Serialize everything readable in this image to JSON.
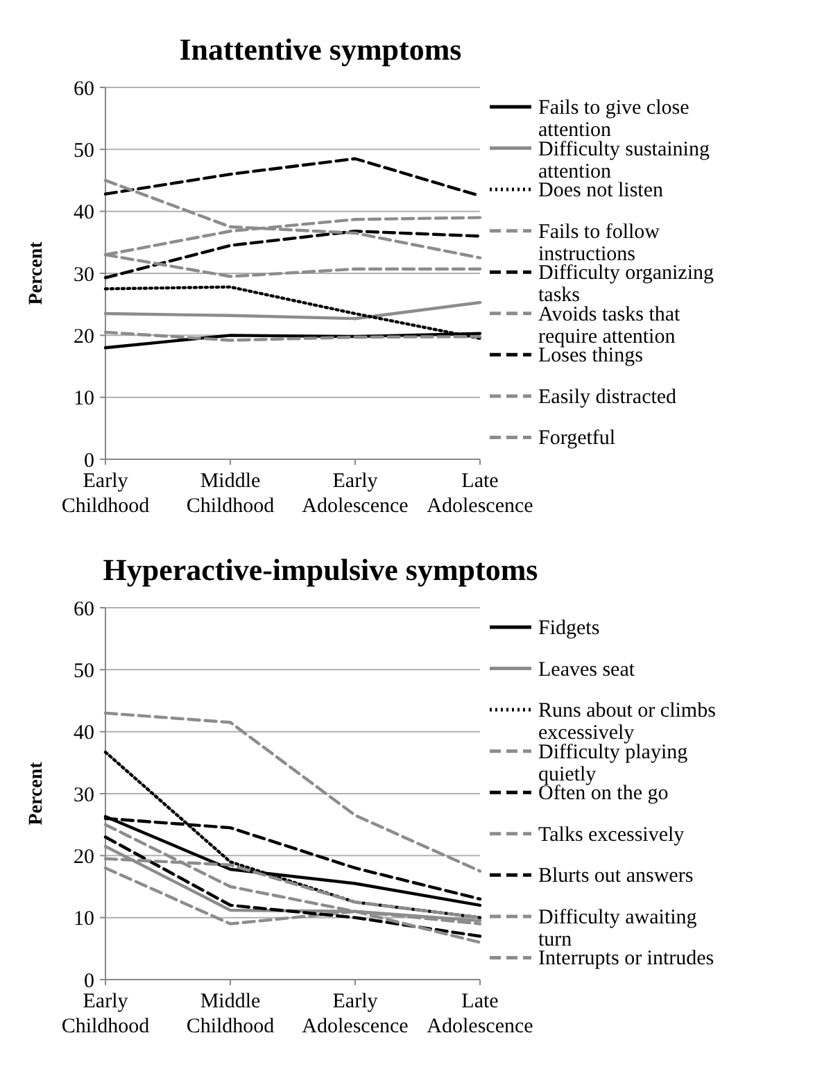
{
  "chart_data": [
    {
      "type": "line",
      "title": "Inattentive symptoms",
      "ylabel": "Percent",
      "categories": [
        "Early Childhood",
        "Middle Childhood",
        "Early Adolescence",
        "Late Adolescence"
      ],
      "ylim": [
        0,
        60
      ],
      "yticks": [
        0,
        10,
        20,
        30,
        40,
        50,
        60
      ],
      "grid": "y",
      "legend": "right",
      "marker": "none",
      "series": [
        {
          "name": "Fails to give close attention",
          "color": "#000000",
          "line_style": "solid",
          "values": [
            18,
            20,
            19.8,
            20.3
          ]
        },
        {
          "name": "Difficulty sustaining attention",
          "color": "#8c8c8c",
          "line_style": "solid",
          "values": [
            23.5,
            23.2,
            22.7,
            25.3
          ]
        },
        {
          "name": "Does not listen",
          "color": "#000000",
          "line_style": "dotted",
          "values": [
            27.5,
            27.8,
            23.5,
            19.5
          ]
        },
        {
          "name": "Fails to follow instructions",
          "color": "#8c8c8c",
          "line_style": "dashed",
          "values": [
            33,
            36.8,
            38.7,
            39
          ]
        },
        {
          "name": "Difficulty organizing tasks",
          "color": "#000000",
          "line_style": "dashed",
          "values": [
            42.8,
            46,
            48.5,
            42.5
          ]
        },
        {
          "name": "Avoids tasks that require attention",
          "color": "#8c8c8c",
          "line_style": "dashed",
          "values": [
            20.5,
            19.2,
            19.7,
            19.8
          ]
        },
        {
          "name": "Loses things",
          "color": "#000000",
          "line_style": "dashed",
          "values": [
            29.3,
            34.5,
            36.8,
            36
          ]
        },
        {
          "name": "Easily distracted",
          "color": "#8c8c8c",
          "line_style": "dashed",
          "values": [
            45,
            37.5,
            36.5,
            32.5
          ]
        },
        {
          "name": "Forgetful",
          "color": "#8c8c8c",
          "line_style": "dashed",
          "values": [
            33,
            29.5,
            30.7,
            30.7
          ]
        }
      ]
    },
    {
      "type": "line",
      "title": "Hyperactive-impulsive symptoms",
      "ylabel": "Percent",
      "categories": [
        "Early Childhood",
        "Middle Childhood",
        "Early Adolescence",
        "Late Adolescence"
      ],
      "ylim": [
        0,
        60
      ],
      "yticks": [
        0,
        10,
        20,
        30,
        40,
        50,
        60
      ],
      "grid": "y",
      "legend": "right",
      "marker": "none",
      "series": [
        {
          "name": "Fidgets",
          "color": "#000000",
          "line_style": "solid",
          "values": [
            26.3,
            17.8,
            15.5,
            12
          ]
        },
        {
          "name": "Leaves seat",
          "color": "#8c8c8c",
          "line_style": "solid",
          "values": [
            21.5,
            11.2,
            11,
            9.5
          ]
        },
        {
          "name": "Runs about or climbs excessively",
          "color": "#000000",
          "line_style": "dotted",
          "values": [
            36.7,
            19,
            12.5,
            10
          ]
        },
        {
          "name": "Difficulty playing quietly",
          "color": "#8c8c8c",
          "line_style": "dashed",
          "values": [
            18,
            9,
            11,
            9
          ]
        },
        {
          "name": "Often on the go",
          "color": "#000000",
          "line_style": "dashed",
          "values": [
            23,
            12,
            10,
            7
          ]
        },
        {
          "name": "Talks excessively",
          "color": "#8c8c8c",
          "line_style": "dashed",
          "values": [
            43,
            41.5,
            26.5,
            17.5
          ]
        },
        {
          "name": "Blurts out answers",
          "color": "#000000",
          "line_style": "dashed",
          "values": [
            26,
            24.5,
            18,
            13
          ]
        },
        {
          "name": "Difficulty awaiting turn",
          "color": "#8c8c8c",
          "line_style": "dashed",
          "values": [
            25,
            15,
            11,
            6
          ]
        },
        {
          "name": "Interrupts or intrudes",
          "color": "#8c8c8c",
          "line_style": "dashed",
          "values": [
            19.5,
            18.5,
            12.5,
            10
          ]
        }
      ]
    }
  ]
}
